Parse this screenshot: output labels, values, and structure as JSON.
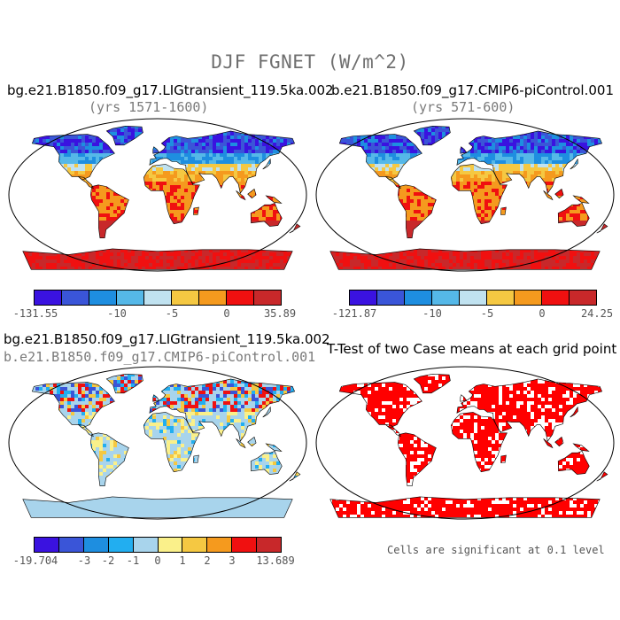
{
  "figure": {
    "title": "DJF FGNET (W/m^2)",
    "note": "Cells are significant at 0.1 level"
  },
  "colors": {
    "neg_pos_scale": [
      "#3a12e0",
      "#3a55d8",
      "#1e8ee0",
      "#55b8e8",
      "#c0e2f0",
      "#f5c842",
      "#f59a1e",
      "#f01010",
      "#c8282a"
    ],
    "diff_scale": [
      "#3a12e0",
      "#3a55d8",
      "#1e8ee0",
      "#22aef0",
      "#a8d4ec",
      "#faf08a",
      "#f5c842",
      "#f59a1e",
      "#f01010",
      "#c8282a"
    ],
    "ttest": "#ff0000"
  },
  "chart_data": [
    {
      "type": "heatmap",
      "title": "bg.e21.B1850.f09_g17.LIGtransient_119.5ka.002",
      "subtitle": "(yrs 1571-1600)",
      "colorbar_ticks": [
        "-131.55",
        "-10",
        "-5",
        "0",
        "35.89"
      ],
      "range": [
        -131.55,
        35.89
      ]
    },
    {
      "type": "heatmap",
      "title": "b.e21.B1850.f09_g17.CMIP6-piControl.001",
      "subtitle": "(yrs 571-600)",
      "colorbar_ticks": [
        "-121.87",
        "-10",
        "-5",
        "0",
        "24.25"
      ],
      "range": [
        -121.87,
        24.25
      ]
    },
    {
      "type": "heatmap",
      "title": "bg.e21.B1850.f09_g17.LIGtransient_119.5ka.002",
      "subtitle": "b.e21.B1850.f09_g17.CMIP6-piControl.001",
      "colorbar_ticks": [
        "-19.704",
        "-3",
        "-2",
        "-1",
        "0",
        "1",
        "2",
        "3",
        "13.689"
      ],
      "range": [
        -19.704,
        13.689
      ]
    },
    {
      "type": "heatmap",
      "title": "T-Test of two Case means at each grid point",
      "subtitle": ""
    }
  ]
}
